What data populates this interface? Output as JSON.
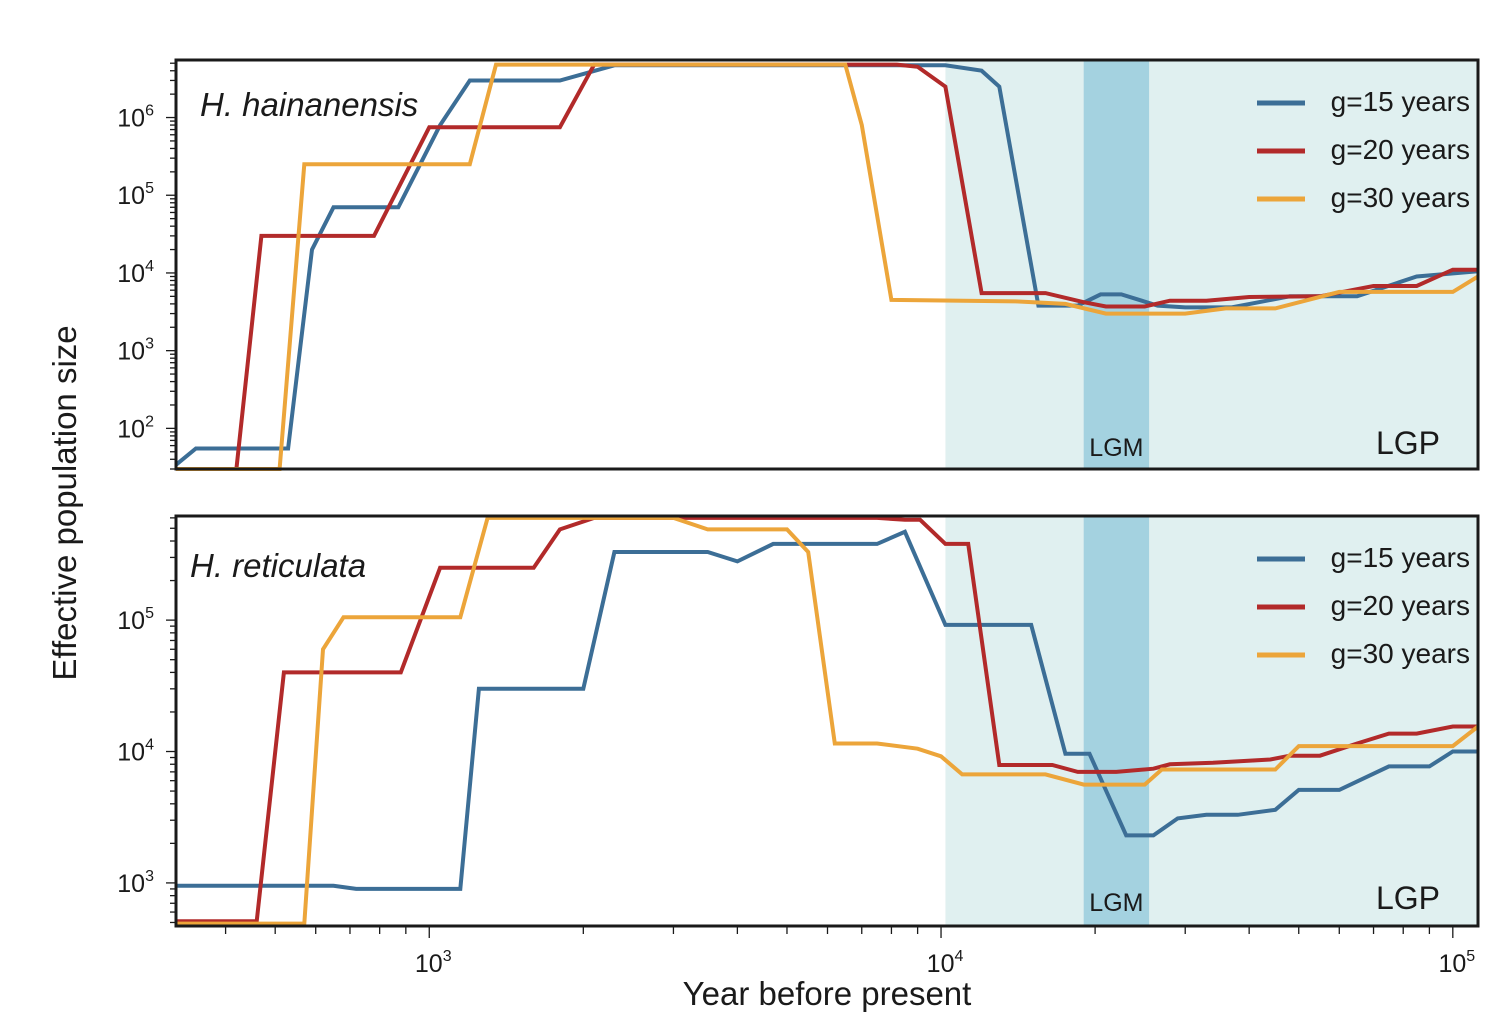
{
  "chart_data": {
    "type": "line",
    "xlabel": "Year before present",
    "ylabel": "Effective population size",
    "x_scale": "log",
    "xlim": [
      320,
      112000
    ],
    "x_ticks": [
      {
        "value": 1000,
        "base": "10",
        "exp": "3"
      },
      {
        "value": 10000,
        "base": "10",
        "exp": "4"
      },
      {
        "value": 100000,
        "base": "10",
        "exp": "5"
      }
    ],
    "colors": {
      "g15": "#3c6e96",
      "g20": "#b22a2a",
      "g30": "#eca53a",
      "lgp_band": "#e0f0f0",
      "lgm_band": "#a4d2e0"
    },
    "panels": [
      {
        "title": "H. hainanensis",
        "y_scale": "log",
        "ylim": [
          30,
          5500000
        ],
        "y_ticks": [
          {
            "value": 100,
            "base": "10",
            "exp": "2"
          },
          {
            "value": 1000,
            "base": "10",
            "exp": "3"
          },
          {
            "value": 10000,
            "base": "10",
            "exp": "4"
          },
          {
            "value": 100000,
            "base": "10",
            "exp": "5"
          },
          {
            "value": 1000000,
            "base": "10",
            "exp": "6"
          }
        ],
        "regions": [
          {
            "label": "LGP",
            "x_start": 10200,
            "x_end": 112000,
            "style": "light"
          },
          {
            "label": "LGM",
            "x_start": 19000,
            "x_end": 25500,
            "style": "dark"
          }
        ],
        "series": [
          {
            "name": "g=15 years",
            "color_key": "g15",
            "points": [
              [
                320,
                34
              ],
              [
                350,
                55
              ],
              [
                530,
                55
              ],
              [
                590,
                20000
              ],
              [
                650,
                70000
              ],
              [
                870,
                70000
              ],
              [
                1050,
                800000
              ],
              [
                1200,
                3000000
              ],
              [
                1800,
                3000000
              ],
              [
                2300,
                4700000
              ],
              [
                10200,
                4700000
              ],
              [
                12000,
                4000000
              ],
              [
                13000,
                2500000
              ],
              [
                15500,
                3800
              ],
              [
                18500,
                3800
              ],
              [
                20500,
                5300
              ],
              [
                22500,
                5300
              ],
              [
                26500,
                3800
              ],
              [
                30000,
                3600
              ],
              [
                37000,
                3600
              ],
              [
                48000,
                5000
              ],
              [
                65000,
                5000
              ],
              [
                85000,
                9000
              ],
              [
                112000,
                10500
              ]
            ]
          },
          {
            "name": "g=20 years",
            "color_key": "g20",
            "points": [
              [
                320,
                30
              ],
              [
                420,
                30
              ],
              [
                470,
                30000
              ],
              [
                780,
                30000
              ],
              [
                1000,
                750000
              ],
              [
                1800,
                750000
              ],
              [
                2100,
                4800000
              ],
              [
                8200,
                4800000
              ],
              [
                9000,
                4500000
              ],
              [
                10200,
                2500000
              ],
              [
                12000,
                5500
              ],
              [
                16000,
                5500
              ],
              [
                19000,
                4200
              ],
              [
                21000,
                3700
              ],
              [
                25000,
                3700
              ],
              [
                28000,
                4400
              ],
              [
                33000,
                4400
              ],
              [
                40000,
                4900
              ],
              [
                55000,
                5000
              ],
              [
                70000,
                6800
              ],
              [
                85000,
                6800
              ],
              [
                100000,
                11000
              ],
              [
                112000,
                11000
              ]
            ]
          },
          {
            "name": "g=30 years",
            "color_key": "g30",
            "points": [
              [
                320,
                30
              ],
              [
                510,
                30
              ],
              [
                570,
                250000
              ],
              [
                1200,
                250000
              ],
              [
                1350,
                4800000
              ],
              [
                6500,
                4800000
              ],
              [
                7000,
                800000
              ],
              [
                8000,
                4500
              ],
              [
                14000,
                4300
              ],
              [
                17500,
                4000
              ],
              [
                21000,
                3000
              ],
              [
                30000,
                3000
              ],
              [
                36000,
                3500
              ],
              [
                45000,
                3500
              ],
              [
                60000,
                5700
              ],
              [
                80000,
                5700
              ],
              [
                100000,
                5700
              ],
              [
                112000,
                9000
              ]
            ]
          }
        ],
        "legend": [
          "g=15 years",
          "g=20 years",
          "g=30 years"
        ]
      },
      {
        "title": "H. reticulata",
        "y_scale": "log",
        "ylim": [
          470,
          620000
        ],
        "y_ticks": [
          {
            "value": 1000,
            "base": "10",
            "exp": "3"
          },
          {
            "value": 10000,
            "base": "10",
            "exp": "4"
          },
          {
            "value": 100000,
            "base": "10",
            "exp": "5"
          }
        ],
        "regions": [
          {
            "label": "LGP",
            "x_start": 10200,
            "x_end": 112000,
            "style": "light"
          },
          {
            "label": "LGM",
            "x_start": 19000,
            "x_end": 25500,
            "style": "dark"
          }
        ],
        "series": [
          {
            "name": "g=15 years",
            "color_key": "g15",
            "points": [
              [
                320,
                950
              ],
              [
                650,
                950
              ],
              [
                720,
                900
              ],
              [
                1150,
                900
              ],
              [
                1250,
                30000
              ],
              [
                2000,
                30000
              ],
              [
                2300,
                330000
              ],
              [
                3500,
                330000
              ],
              [
                4000,
                280000
              ],
              [
                4700,
                380000
              ],
              [
                7500,
                380000
              ],
              [
                8500,
                470000
              ],
              [
                10200,
                92000
              ],
              [
                15000,
                92000
              ],
              [
                17500,
                9600
              ],
              [
                19500,
                9600
              ],
              [
                23000,
                2300
              ],
              [
                26000,
                2300
              ],
              [
                29000,
                3100
              ],
              [
                33000,
                3300
              ],
              [
                38000,
                3300
              ],
              [
                45000,
                3600
              ],
              [
                50000,
                5100
              ],
              [
                60000,
                5100
              ],
              [
                75000,
                7700
              ],
              [
                90000,
                7700
              ],
              [
                100000,
                10000
              ],
              [
                112000,
                10000
              ]
            ]
          },
          {
            "name": "g=20 years",
            "color_key": "g20",
            "points": [
              [
                320,
                510
              ],
              [
                460,
                510
              ],
              [
                520,
                40000
              ],
              [
                880,
                40000
              ],
              [
                1050,
                250000
              ],
              [
                1600,
                250000
              ],
              [
                1800,
                490000
              ],
              [
                2100,
                600000
              ],
              [
                7500,
                600000
              ],
              [
                8500,
                580000
              ],
              [
                9100,
                580000
              ],
              [
                10200,
                380000
              ],
              [
                11300,
                380000
              ],
              [
                13000,
                7900
              ],
              [
                16500,
                7900
              ],
              [
                18500,
                7000
              ],
              [
                22000,
                7000
              ],
              [
                26000,
                7400
              ],
              [
                28000,
                8000
              ],
              [
                34000,
                8200
              ],
              [
                44000,
                8700
              ],
              [
                48000,
                9300
              ],
              [
                55000,
                9300
              ],
              [
                65000,
                11500
              ],
              [
                75000,
                13700
              ],
              [
                85000,
                13700
              ],
              [
                100000,
                15500
              ],
              [
                112000,
                15500
              ]
            ]
          },
          {
            "name": "g=30 years",
            "color_key": "g30",
            "points": [
              [
                320,
                490
              ],
              [
                570,
                490
              ],
              [
                620,
                60000
              ],
              [
                680,
                105000
              ],
              [
                1000,
                105000
              ],
              [
                1150,
                105000
              ],
              [
                1300,
                600000
              ],
              [
                3000,
                600000
              ],
              [
                3500,
                490000
              ],
              [
                5000,
                490000
              ],
              [
                5500,
                330000
              ],
              [
                6200,
                11500
              ],
              [
                7500,
                11500
              ],
              [
                9000,
                10500
              ],
              [
                10000,
                9200
              ],
              [
                11000,
                6700
              ],
              [
                16000,
                6700
              ],
              [
                19000,
                5600
              ],
              [
                25000,
                5600
              ],
              [
                27000,
                7300
              ],
              [
                40000,
                7300
              ],
              [
                45000,
                7300
              ],
              [
                50000,
                11000
              ],
              [
                65000,
                11000
              ],
              [
                100000,
                11000
              ],
              [
                112000,
                15500
              ]
            ]
          }
        ],
        "legend": [
          "g=15 years",
          "g=20 years",
          "g=30 years"
        ]
      }
    ]
  }
}
